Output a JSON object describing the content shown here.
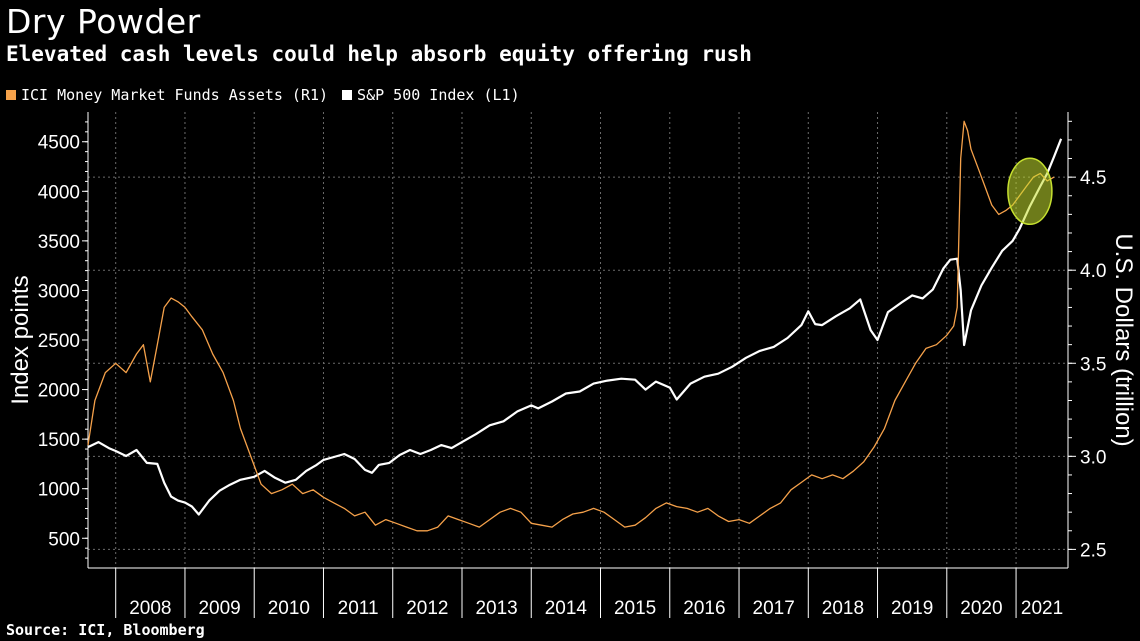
{
  "header": {
    "title": "Dry Powder",
    "subtitle": "Elevated cash levels could help absorb equity offering rush"
  },
  "legend": [
    {
      "label": "ICI Money Market Funds Assets (R1)",
      "color": "#f5a14a"
    },
    {
      "label": "S&P 500 Index (L1)",
      "color": "#ffffff"
    }
  ],
  "footer": {
    "source": "Source: ICI, Bloomberg"
  },
  "chart_data": {
    "type": "line",
    "title": "Dry Powder",
    "subtitle": "Elevated cash levels could help absorb equity offering rush",
    "x_categories": [
      "2008",
      "2009",
      "2010",
      "2011",
      "2012",
      "2013",
      "2014",
      "2015",
      "2016",
      "2017",
      "2018",
      "2019",
      "2020",
      "2021"
    ],
    "x_range": [
      2007.6,
      2021.75
    ],
    "left_axis": {
      "label": "Index points",
      "ticks": [
        500,
        1000,
        1500,
        2000,
        2500,
        3000,
        3500,
        4000,
        4500
      ],
      "ylim": [
        200,
        4800
      ]
    },
    "right_axis": {
      "label": "U.S. Dollars (trillion)",
      "ticks": [
        "2.5",
        "3.0",
        "3.5",
        "4.0",
        "4.5"
      ],
      "ylim": [
        2.4,
        4.85
      ]
    },
    "grid": true,
    "legend_position": "top-left",
    "highlight": {
      "shape": "ellipse",
      "x": 2021.2,
      "y_left": 4000,
      "color": "#c6e030"
    },
    "series": [
      {
        "name": "S&P 500 Index (L1)",
        "axis": "left",
        "color": "#ffffff",
        "x": [
          2007.6,
          2007.75,
          2007.9,
          2008.0,
          2008.15,
          2008.3,
          2008.45,
          2008.6,
          2008.7,
          2008.8,
          2008.9,
          2009.0,
          2009.1,
          2009.2,
          2009.35,
          2009.5,
          2009.65,
          2009.8,
          2010.0,
          2010.15,
          2010.3,
          2010.45,
          2010.6,
          2010.75,
          2010.9,
          2011.0,
          2011.15,
          2011.3,
          2011.45,
          2011.6,
          2011.7,
          2011.8,
          2011.95,
          2012.1,
          2012.25,
          2012.4,
          2012.55,
          2012.7,
          2012.85,
          2013.0,
          2013.2,
          2013.4,
          2013.6,
          2013.8,
          2014.0,
          2014.1,
          2014.3,
          2014.5,
          2014.7,
          2014.9,
          2015.1,
          2015.3,
          2015.5,
          2015.65,
          2015.8,
          2016.0,
          2016.1,
          2016.3,
          2016.5,
          2016.7,
          2016.9,
          2017.1,
          2017.3,
          2017.5,
          2017.7,
          2017.9,
          2018.0,
          2018.1,
          2018.2,
          2018.4,
          2018.6,
          2018.75,
          2018.9,
          2019.0,
          2019.15,
          2019.35,
          2019.5,
          2019.65,
          2019.8,
          2019.95,
          2020.05,
          2020.15,
          2020.2,
          2020.25,
          2020.35,
          2020.5,
          2020.65,
          2020.8,
          2020.95,
          2021.05,
          2021.2,
          2021.35,
          2021.45,
          2021.55,
          2021.65
        ],
        "y": [
          1420,
          1470,
          1410,
          1380,
          1330,
          1390,
          1260,
          1250,
          1060,
          920,
          880,
          860,
          820,
          740,
          880,
          980,
          1040,
          1090,
          1120,
          1180,
          1110,
          1060,
          1090,
          1180,
          1240,
          1290,
          1320,
          1350,
          1300,
          1190,
          1160,
          1240,
          1260,
          1340,
          1390,
          1350,
          1390,
          1440,
          1410,
          1470,
          1550,
          1640,
          1680,
          1780,
          1840,
          1810,
          1880,
          1960,
          1980,
          2060,
          2090,
          2110,
          2100,
          2000,
          2080,
          2020,
          1900,
          2060,
          2130,
          2160,
          2230,
          2320,
          2390,
          2430,
          2520,
          2650,
          2790,
          2660,
          2650,
          2740,
          2820,
          2910,
          2600,
          2500,
          2780,
          2880,
          2950,
          2920,
          3010,
          3220,
          3310,
          3320,
          3000,
          2450,
          2800,
          3050,
          3230,
          3400,
          3500,
          3620,
          3850,
          4050,
          4180,
          4350,
          4530
        ]
      },
      {
        "name": "ICI Money Market Funds Assets (R1)",
        "axis": "right",
        "color": "#f5a14a",
        "x": [
          2007.6,
          2007.7,
          2007.85,
          2008.0,
          2008.15,
          2008.3,
          2008.4,
          2008.5,
          2008.6,
          2008.7,
          2008.8,
          2008.9,
          2009.0,
          2009.1,
          2009.25,
          2009.4,
          2009.55,
          2009.7,
          2009.8,
          2009.9,
          2010.0,
          2010.1,
          2010.25,
          2010.4,
          2010.55,
          2010.7,
          2010.85,
          2011.0,
          2011.15,
          2011.3,
          2011.45,
          2011.6,
          2011.75,
          2011.9,
          2012.05,
          2012.2,
          2012.35,
          2012.5,
          2012.65,
          2012.8,
          2012.95,
          2013.1,
          2013.25,
          2013.4,
          2013.55,
          2013.7,
          2013.85,
          2014.0,
          2014.15,
          2014.3,
          2014.45,
          2014.6,
          2014.75,
          2014.9,
          2015.05,
          2015.2,
          2015.35,
          2015.5,
          2015.65,
          2015.8,
          2015.95,
          2016.1,
          2016.25,
          2016.4,
          2016.55,
          2016.7,
          2016.85,
          2017.0,
          2017.15,
          2017.3,
          2017.45,
          2017.6,
          2017.75,
          2017.9,
          2018.05,
          2018.2,
          2018.35,
          2018.5,
          2018.65,
          2018.8,
          2018.95,
          2019.1,
          2019.25,
          2019.4,
          2019.55,
          2019.7,
          2019.85,
          2020.0,
          2020.1,
          2020.15,
          2020.2,
          2020.25,
          2020.3,
          2020.35,
          2020.45,
          2020.55,
          2020.65,
          2020.75,
          2020.85,
          2020.95,
          2021.05,
          2021.15,
          2021.25,
          2021.35,
          2021.45,
          2021.55
        ],
        "y": [
          3.06,
          3.3,
          3.45,
          3.5,
          3.45,
          3.55,
          3.6,
          3.4,
          3.6,
          3.8,
          3.85,
          3.83,
          3.8,
          3.75,
          3.68,
          3.55,
          3.45,
          3.3,
          3.15,
          3.05,
          2.95,
          2.85,
          2.8,
          2.82,
          2.85,
          2.8,
          2.82,
          2.78,
          2.75,
          2.72,
          2.68,
          2.7,
          2.63,
          2.66,
          2.64,
          2.62,
          2.6,
          2.6,
          2.62,
          2.68,
          2.66,
          2.64,
          2.62,
          2.66,
          2.7,
          2.72,
          2.7,
          2.64,
          2.63,
          2.62,
          2.66,
          2.69,
          2.7,
          2.72,
          2.7,
          2.66,
          2.62,
          2.63,
          2.67,
          2.72,
          2.75,
          2.73,
          2.72,
          2.7,
          2.72,
          2.68,
          2.65,
          2.66,
          2.64,
          2.68,
          2.72,
          2.75,
          2.82,
          2.86,
          2.9,
          2.88,
          2.9,
          2.88,
          2.92,
          2.97,
          3.05,
          3.15,
          3.3,
          3.4,
          3.5,
          3.58,
          3.6,
          3.65,
          3.7,
          3.8,
          4.6,
          4.8,
          4.75,
          4.65,
          4.55,
          4.45,
          4.35,
          4.3,
          4.32,
          4.35,
          4.4,
          4.45,
          4.5,
          4.52,
          4.48,
          4.5
        ]
      }
    ]
  }
}
